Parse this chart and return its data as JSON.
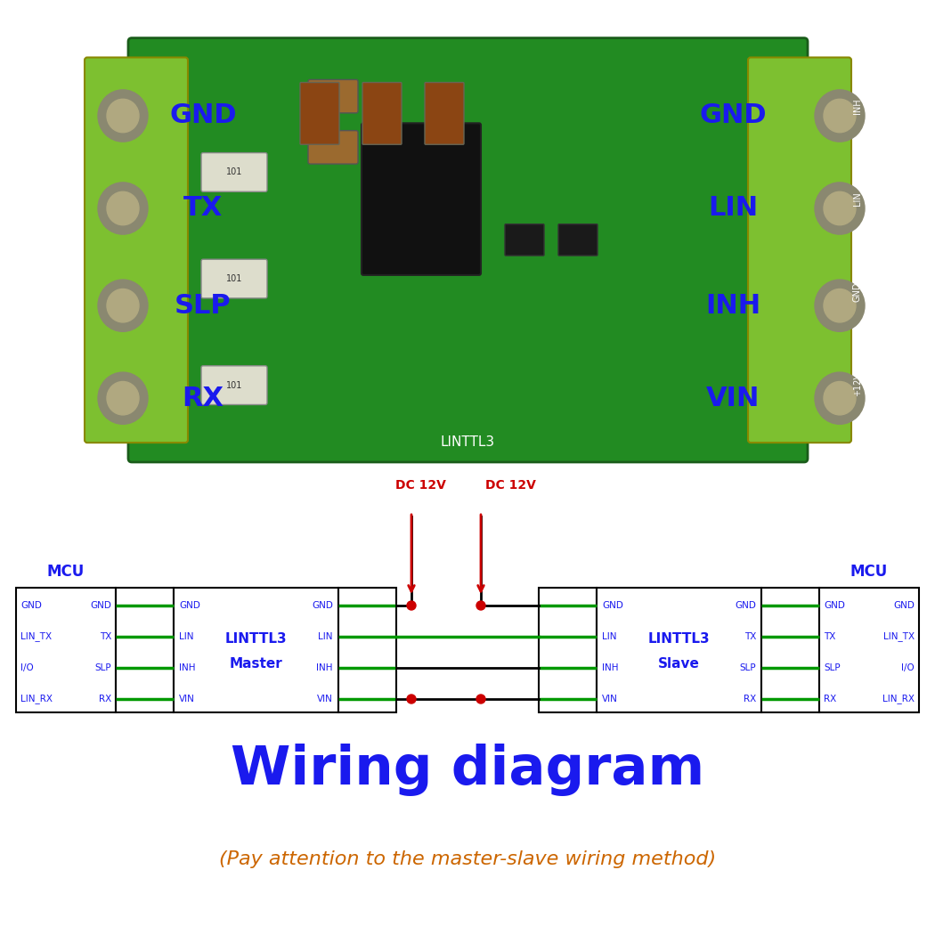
{
  "bg_color": "#ffffff",
  "blue": "#1a1aee",
  "green": "#009900",
  "red": "#cc0000",
  "black": "#000000",
  "orange": "#cc6600",
  "left_pcb_labels": [
    "RX",
    "SLP",
    "TX",
    "GND"
  ],
  "right_pcb_labels": [
    "VIN",
    "INH",
    "LIN",
    "GND"
  ],
  "mcu_left_inner": [
    "LIN_RX",
    "I/O",
    "LIN_TX",
    "GND"
  ],
  "mcu_left_outer": [
    "RX",
    "SLP",
    "TX",
    "GND"
  ],
  "master_right_pins": [
    "VIN",
    "INH",
    "LIN",
    "GND"
  ],
  "slave_left_pins": [
    "VIN",
    "INH",
    "LIN",
    "GND"
  ],
  "slave_right_pins": [
    "RX",
    "SLP",
    "TX",
    "GND"
  ],
  "mcu_right_inner": [
    "RX",
    "SLP",
    "TX",
    "GND"
  ],
  "mcu_right_outer": [
    "LIN_RX",
    "I/O",
    "LIN_TX",
    "GND"
  ],
  "title": "Wiring diagram",
  "subtitle": "(Pay attention to the master-slave wiring method)",
  "dc12v_label": "DC 12V",
  "mcu_label": "MCU",
  "master_box_label1": "LINTTL3",
  "master_box_label2": "Master",
  "slave_box_label1": "LINTTL3",
  "slave_box_label2": "Slave",
  "pcb_label": "LINTTL3"
}
